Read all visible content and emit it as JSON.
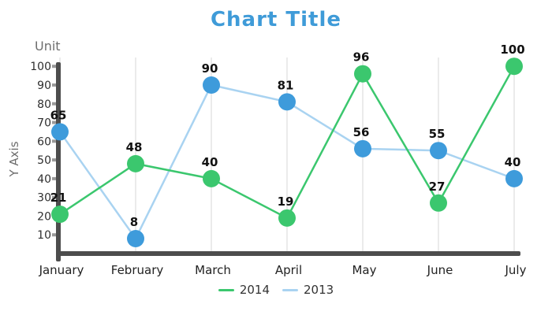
{
  "title": "Chart Title",
  "colors": {
    "title": "#3f9bd8",
    "series_2014": "#3bc76e",
    "series_2013_marker": "#3e9bdb",
    "series_2013_line": "#a9d3f1",
    "axis": "#4d4d4d",
    "grid": "#ebebeb",
    "tick_notch": "#9a9a9a"
  },
  "chart_data": {
    "type": "line",
    "title": "Chart Title",
    "categories": [
      "January",
      "February",
      "March",
      "April",
      "May",
      "June",
      "July"
    ],
    "series": [
      {
        "name": "2014",
        "marker_color": "#3bc76e",
        "line_color": "#3bc76e",
        "values": [
          21,
          48,
          40,
          19,
          96,
          27,
          100
        ]
      },
      {
        "name": "2013",
        "marker_color": "#3e9bdb",
        "line_color": "#a9d3f1",
        "values": [
          65,
          8,
          90,
          81,
          56,
          55,
          40
        ]
      }
    ],
    "xlabel": "",
    "ylabel": "Y Axis",
    "unit_label": "Unit",
    "yticks": [
      10,
      20,
      30,
      40,
      50,
      60,
      70,
      80,
      90,
      100
    ],
    "ylim": [
      0,
      105
    ],
    "grid": "vertical",
    "legend_position": "bottom",
    "point_labels_shown": true
  },
  "legend": {
    "items": [
      {
        "label": "2014"
      },
      {
        "label": "2013"
      }
    ]
  }
}
